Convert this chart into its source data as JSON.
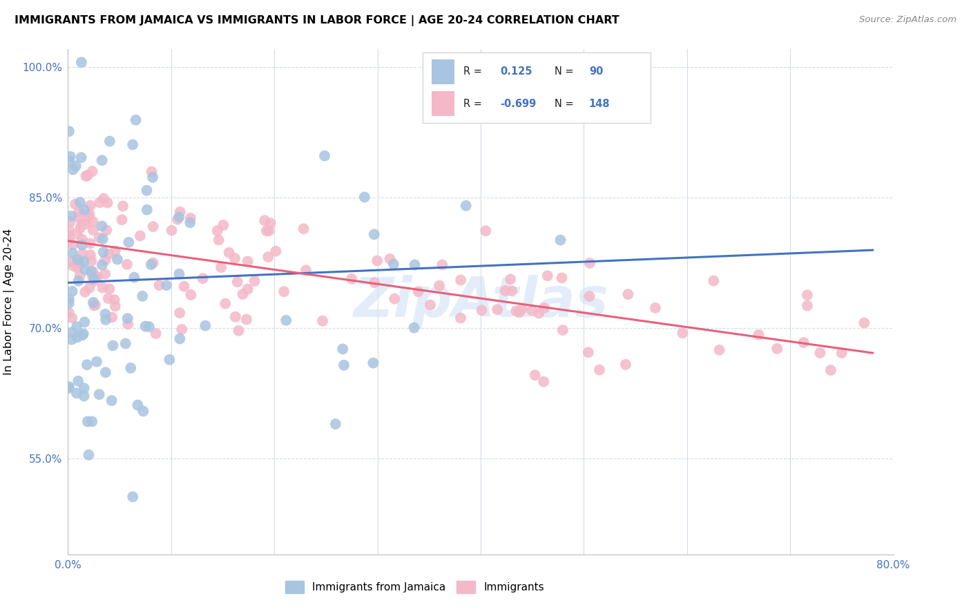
{
  "title": "IMMIGRANTS FROM JAMAICA VS IMMIGRANTS IN LABOR FORCE | AGE 20-24 CORRELATION CHART",
  "source": "Source: ZipAtlas.com",
  "ylabel": "In Labor Force | Age 20-24",
  "xlim": [
    0.0,
    0.8
  ],
  "ylim": [
    0.44,
    1.02
  ],
  "xticks": [
    0.0,
    0.1,
    0.2,
    0.3,
    0.4,
    0.5,
    0.6,
    0.7,
    0.8
  ],
  "ytick_positions": [
    0.55,
    0.7,
    0.85,
    1.0
  ],
  "ytick_labels": [
    "55.0%",
    "70.0%",
    "85.0%",
    "100.0%"
  ],
  "blue_color": "#a8c4e0",
  "pink_color": "#f4b8c8",
  "blue_line_color": "#4472c4",
  "pink_line_color": "#e8607a",
  "dashed_line_color": "#b8cfe8",
  "blue_slope": 0.048,
  "blue_intercept": 0.752,
  "pink_slope": -0.165,
  "pink_intercept": 0.8,
  "dashed_slope": 0.048,
  "dashed_intercept": 0.752,
  "blue_seed": 12,
  "pink_seed": 7
}
